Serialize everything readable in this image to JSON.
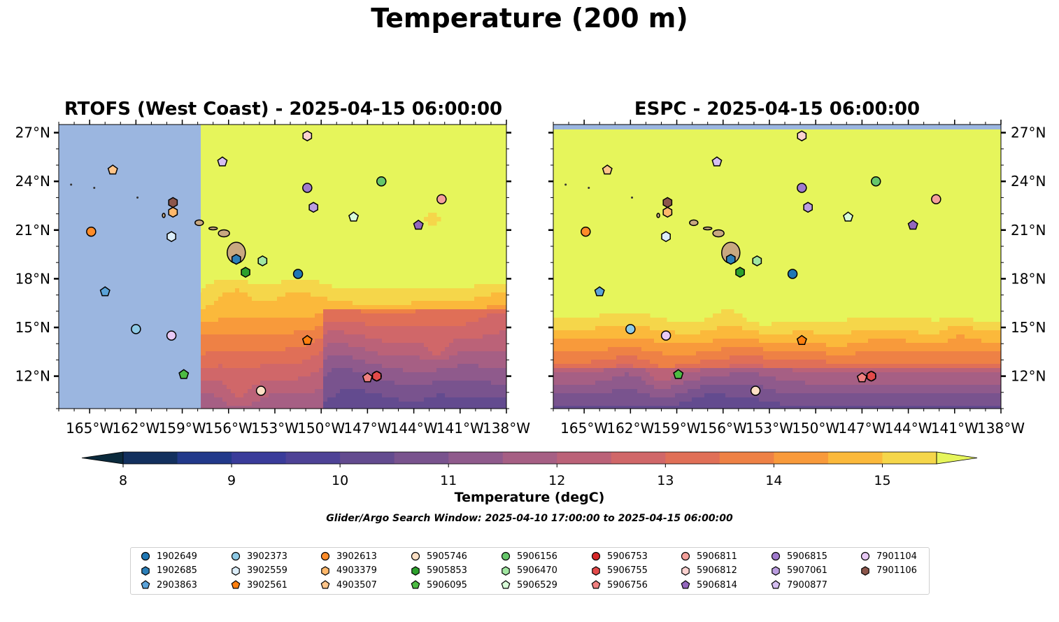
{
  "title": "Temperature (200 m)",
  "panels": [
    {
      "title": "RTOFS (West Coast) - 2025-04-15 06:00:00"
    },
    {
      "title": "ESPC - 2025-04-15 06:00:00"
    }
  ],
  "colorbar": {
    "label": "Temperature (degC)",
    "ticks": [
      "8",
      "9",
      "10",
      "11",
      "12",
      "13",
      "14",
      "15"
    ],
    "min": 8,
    "max": 15.5,
    "step": 0.5,
    "colors": [
      "#0b2a3c",
      "#13305e",
      "#22398a",
      "#3a3c9a",
      "#4e4296",
      "#634b8f",
      "#79538e",
      "#8f5a8c",
      "#a65f84",
      "#bb6278",
      "#d06769",
      "#e06f57",
      "#ee8145",
      "#f89a3b",
      "#fbb93b",
      "#f5d64a",
      "#e6f55b"
    ]
  },
  "search_window": "Glider/Argo Search Window: 2025-04-10 17:00:00 to 2025-04-15 06:00:00",
  "chart_data": {
    "type": "map-contour",
    "variable": "Temperature (degC)",
    "depth": "200 m",
    "lon_range": [
      -167,
      -138
    ],
    "lat_range": [
      10,
      27.5
    ],
    "x_ticks": [
      "165°W",
      "162°W",
      "159°W",
      "156°W",
      "153°W",
      "150°W",
      "147°W",
      "144°W",
      "141°W",
      "138°W"
    ],
    "y_ticks": [
      "27°N",
      "24°N",
      "21°N",
      "18°N",
      "15°N",
      "12°N"
    ],
    "x_tick_values": [
      -165,
      -162,
      -159,
      -156,
      -153,
      -150,
      -147,
      -144,
      -141,
      -138
    ],
    "y_tick_values": [
      27,
      24,
      21,
      18,
      15,
      12
    ],
    "rtofs_west_edge_lon": -157.8,
    "platforms": [
      {
        "id": "1902649",
        "marker": "circle",
        "color": "#1f77b4",
        "lon": -151.5,
        "lat": 18.3
      },
      {
        "id": "1902685",
        "marker": "hexagon",
        "color": "#2c7fb8",
        "lon": -155.5,
        "lat": 19.2
      },
      {
        "id": "2903863",
        "marker": "pentagon",
        "color": "#5ba3d9",
        "lon": -164.0,
        "lat": 17.2
      },
      {
        "id": "3902373",
        "marker": "circle",
        "color": "#8ecae6",
        "lon": -162.0,
        "lat": 14.9
      },
      {
        "id": "3902559",
        "marker": "hexagon",
        "color": "#dceefa",
        "lon": -159.7,
        "lat": 20.6
      },
      {
        "id": "3902561",
        "marker": "pentagon",
        "color": "#ff7f0e",
        "lon": -150.9,
        "lat": 14.2
      },
      {
        "id": "3902613",
        "marker": "circle",
        "color": "#ff8c29",
        "lon": -164.9,
        "lat": 20.9
      },
      {
        "id": "4903379",
        "marker": "hexagon",
        "color": "#ffb86b",
        "lon": -159.6,
        "lat": 22.1
      },
      {
        "id": "4903507",
        "marker": "pentagon",
        "color": "#ffc58a",
        "lon": -163.5,
        "lat": 24.7
      },
      {
        "id": "5905746",
        "marker": "circle",
        "color": "#fde0c5",
        "lon": -153.9,
        "lat": 11.1
      },
      {
        "id": "5905853",
        "marker": "hexagon",
        "color": "#2ca02c",
        "lon": -154.9,
        "lat": 18.4
      },
      {
        "id": "5906095",
        "marker": "pentagon",
        "color": "#4dbb43",
        "lon": -158.9,
        "lat": 12.1
      },
      {
        "id": "5906156",
        "marker": "circle",
        "color": "#66c76a",
        "lon": -146.1,
        "lat": 24.0
      },
      {
        "id": "5906470",
        "marker": "hexagon",
        "color": "#a1e6a1",
        "lon": -153.8,
        "lat": 19.1
      },
      {
        "id": "5906529",
        "marker": "pentagon",
        "color": "#d8fcd8",
        "lon": -147.9,
        "lat": 21.8
      },
      {
        "id": "5906753",
        "marker": "circle",
        "color": "#d62728",
        "lon": -146.4,
        "lat": 12.0
      },
      {
        "id": "5906755",
        "marker": "hexagon",
        "color": "#e34a4a",
        "lon": -146.4,
        "lat": 12.0
      },
      {
        "id": "5906756",
        "marker": "pentagon",
        "color": "#f08080",
        "lon": -147.0,
        "lat": 11.9
      },
      {
        "id": "5906811",
        "marker": "circle",
        "color": "#f4a09b",
        "lon": -142.2,
        "lat": 22.9
      },
      {
        "id": "5906812",
        "marker": "hexagon",
        "color": "#fcd2d0",
        "lon": -150.9,
        "lat": 26.8
      },
      {
        "id": "5906814",
        "marker": "pentagon",
        "color": "#9467bd",
        "lon": -143.7,
        "lat": 21.3
      },
      {
        "id": "5906815",
        "marker": "circle",
        "color": "#a07acd",
        "lon": -150.9,
        "lat": 23.6
      },
      {
        "id": "5907061",
        "marker": "hexagon",
        "color": "#bb9de0",
        "lon": -150.5,
        "lat": 22.4
      },
      {
        "id": "7900877",
        "marker": "pentagon",
        "color": "#d6bff2",
        "lon": -156.4,
        "lat": 25.2
      },
      {
        "id": "7901104",
        "marker": "circle",
        "color": "#e8c9f5",
        "lon": -159.7,
        "lat": 14.5
      },
      {
        "id": "7901106",
        "marker": "hexagon",
        "color": "#8c564b",
        "lon": -159.6,
        "lat": 22.7
      }
    ],
    "land_color": "#c8a880",
    "nodata_color": "#9bb6e0"
  }
}
